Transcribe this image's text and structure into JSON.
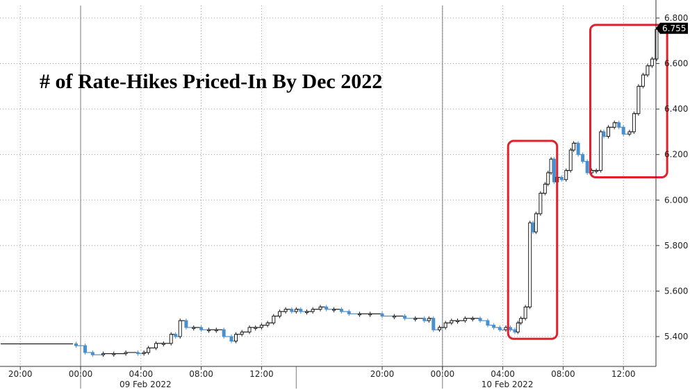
{
  "chart_data": {
    "type": "candlestick",
    "title": "# of Rate-Hikes Priced-In By Dec 2022",
    "xlabel": "",
    "ylabel": "",
    "ylim": [
      5.3,
      6.82
    ],
    "y_ticks": [
      "6.800",
      "6.600",
      "6.400",
      "6.200",
      "6.000",
      "5.800",
      "5.600",
      "5.400"
    ],
    "x_ticks": [
      {
        "label": "20:00",
        "t": -4
      },
      {
        "label": "00:00",
        "t": 0
      },
      {
        "label": "04:00",
        "t": 4
      },
      {
        "label": "08:00",
        "t": 8
      },
      {
        "label": "12:00",
        "t": 12
      },
      {
        "label": "20:00",
        "t": 20
      },
      {
        "label": "00:00",
        "t": 24
      },
      {
        "label": "04:00",
        "t": 28
      },
      {
        "label": "08:00",
        "t": 32
      },
      {
        "label": "12:00",
        "t": 36
      }
    ],
    "date_labels": [
      {
        "label": "09 Feb 2022",
        "t": 4.3
      },
      {
        "label": "10 Feb 2022",
        "t": 28.3
      }
    ],
    "day_separators": [
      0,
      24
    ],
    "session_break": 14.3,
    "flat_start": {
      "from": -5.3,
      "to": -0.5,
      "value": 5.368
    },
    "last_value": "6.755",
    "last_value_numeric": 6.755,
    "colors": {
      "up": "#1e1e1e",
      "down": "#4a8fce",
      "highlight": "#e0202a",
      "last_label_bg": "#000000"
    },
    "series": [
      {
        "t": -0.3,
        "v": 5.36
      },
      {
        "t": 0.3,
        "v": 5.33
      },
      {
        "t": 0.8,
        "v": 5.32
      },
      {
        "t": 1.5,
        "v": 5.325
      },
      {
        "t": 2.2,
        "v": 5.325
      },
      {
        "t": 3.0,
        "v": 5.33
      },
      {
        "t": 3.8,
        "v": 5.325
      },
      {
        "t": 4.2,
        "v": 5.33
      },
      {
        "t": 4.5,
        "v": 5.35
      },
      {
        "t": 5.0,
        "v": 5.37
      },
      {
        "t": 5.5,
        "v": 5.37
      },
      {
        "t": 6.0,
        "v": 5.41
      },
      {
        "t": 6.3,
        "v": 5.4
      },
      {
        "t": 6.6,
        "v": 5.47
      },
      {
        "t": 7.0,
        "v": 5.44
      },
      {
        "t": 7.5,
        "v": 5.44
      },
      {
        "t": 8.0,
        "v": 5.43
      },
      {
        "t": 8.5,
        "v": 5.43
      },
      {
        "t": 9.0,
        "v": 5.43
      },
      {
        "t": 9.5,
        "v": 5.4
      },
      {
        "t": 10.0,
        "v": 5.38
      },
      {
        "t": 10.3,
        "v": 5.41
      },
      {
        "t": 10.7,
        "v": 5.42
      },
      {
        "t": 11.2,
        "v": 5.44
      },
      {
        "t": 11.6,
        "v": 5.44
      },
      {
        "t": 12.0,
        "v": 5.45
      },
      {
        "t": 12.4,
        "v": 5.46
      },
      {
        "t": 12.8,
        "v": 5.49
      },
      {
        "t": 13.2,
        "v": 5.51
      },
      {
        "t": 13.6,
        "v": 5.52
      },
      {
        "t": 14.0,
        "v": 5.51
      },
      {
        "t": 14.3,
        "v": 5.52
      },
      {
        "t": 14.6,
        "v": 5.51
      },
      {
        "t": 15.0,
        "v": 5.51
      },
      {
        "t": 15.4,
        "v": 5.52
      },
      {
        "t": 15.9,
        "v": 5.53
      },
      {
        "t": 16.3,
        "v": 5.52
      },
      {
        "t": 16.8,
        "v": 5.52
      },
      {
        "t": 17.3,
        "v": 5.51
      },
      {
        "t": 17.8,
        "v": 5.5
      },
      {
        "t": 18.5,
        "v": 5.5
      },
      {
        "t": 19.2,
        "v": 5.5
      },
      {
        "t": 20.0,
        "v": 5.49
      },
      {
        "t": 20.8,
        "v": 5.49
      },
      {
        "t": 21.5,
        "v": 5.48
      },
      {
        "t": 22.2,
        "v": 5.48
      },
      {
        "t": 22.8,
        "v": 5.47
      },
      {
        "t": 23.1,
        "v": 5.48
      },
      {
        "t": 23.4,
        "v": 5.43
      },
      {
        "t": 23.8,
        "v": 5.44
      },
      {
        "t": 24.2,
        "v": 5.46
      },
      {
        "t": 24.6,
        "v": 5.47
      },
      {
        "t": 25.0,
        "v": 5.47
      },
      {
        "t": 25.5,
        "v": 5.48
      },
      {
        "t": 26.0,
        "v": 5.48
      },
      {
        "t": 26.5,
        "v": 5.47
      },
      {
        "t": 27.0,
        "v": 5.45
      },
      {
        "t": 27.4,
        "v": 5.44
      },
      {
        "t": 27.8,
        "v": 5.43
      },
      {
        "t": 28.2,
        "v": 5.44
      },
      {
        "t": 28.5,
        "v": 5.43
      },
      {
        "t": 28.8,
        "v": 5.42
      },
      {
        "t": 29.0,
        "v": 5.46
      },
      {
        "t": 29.2,
        "v": 5.48
      },
      {
        "t": 29.5,
        "v": 5.53
      },
      {
        "t": 29.8,
        "v": 5.9
      },
      {
        "t": 30.0,
        "v": 5.86
      },
      {
        "t": 30.2,
        "v": 5.94
      },
      {
        "t": 30.5,
        "v": 6.03
      },
      {
        "t": 30.8,
        "v": 6.07
      },
      {
        "t": 31.0,
        "v": 6.12
      },
      {
        "t": 31.2,
        "v": 6.18
      },
      {
        "t": 31.4,
        "v": 6.08
      },
      {
        "t": 31.6,
        "v": 6.1
      },
      {
        "t": 31.9,
        "v": 6.09
      },
      {
        "t": 32.2,
        "v": 6.13
      },
      {
        "t": 32.5,
        "v": 6.22
      },
      {
        "t": 32.7,
        "v": 6.25
      },
      {
        "t": 33.0,
        "v": 6.2
      },
      {
        "t": 33.3,
        "v": 6.17
      },
      {
        "t": 33.6,
        "v": 6.12
      },
      {
        "t": 33.9,
        "v": 6.13
      },
      {
        "t": 34.2,
        "v": 6.13
      },
      {
        "t": 34.5,
        "v": 6.3
      },
      {
        "t": 34.7,
        "v": 6.28
      },
      {
        "t": 35.0,
        "v": 6.32
      },
      {
        "t": 35.4,
        "v": 6.34
      },
      {
        "t": 35.7,
        "v": 6.32
      },
      {
        "t": 36.0,
        "v": 6.29
      },
      {
        "t": 36.4,
        "v": 6.3
      },
      {
        "t": 36.7,
        "v": 6.38
      },
      {
        "t": 37.0,
        "v": 6.5
      },
      {
        "t": 37.3,
        "v": 6.55
      },
      {
        "t": 37.6,
        "v": 6.59
      },
      {
        "t": 37.9,
        "v": 6.62
      },
      {
        "t": 38.2,
        "v": 6.75
      }
    ],
    "highlights": [
      {
        "from": 28.35,
        "to": 31.6,
        "low": 5.39,
        "high": 6.26
      },
      {
        "from": 33.8,
        "to": 38.9,
        "low": 6.1,
        "high": 6.77
      }
    ]
  }
}
